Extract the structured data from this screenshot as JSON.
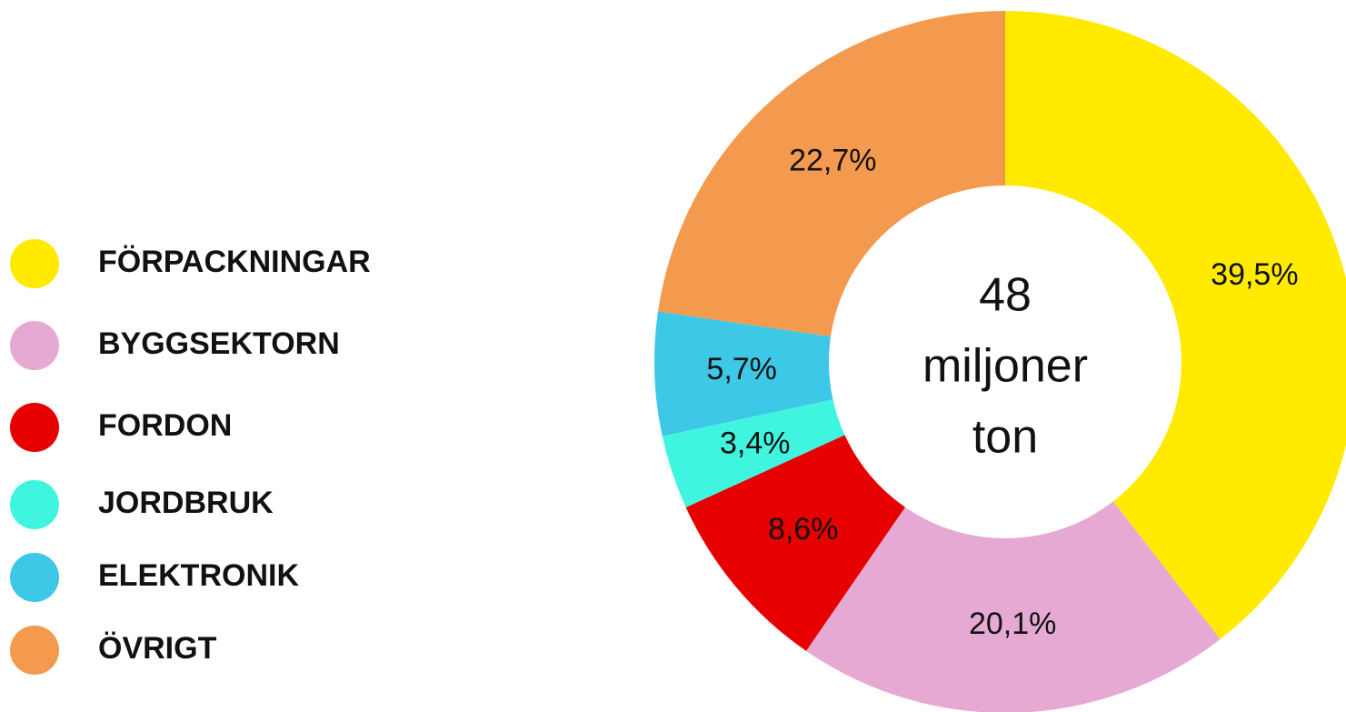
{
  "chart_data": {
    "type": "donut",
    "categories": [
      "FÖRPACKNINGAR",
      "BYGGSEKTORN",
      "FORDON",
      "JORDBRUK",
      "ELEKTRONIK",
      "ÖVRIGT"
    ],
    "values": [
      39.5,
      20.1,
      8.6,
      3.4,
      5.7,
      22.7
    ],
    "value_labels": [
      "39,5%",
      "20,1%",
      "8,6%",
      "3,4%",
      "5,7%",
      "22,7%"
    ],
    "colors": [
      "#ffea00",
      "#e6a9d4",
      "#e60000",
      "#40f5e0",
      "#3cc8e6",
      "#f39a4f"
    ],
    "center_text": [
      "48",
      "miljoner",
      "ton"
    ],
    "legend": "left"
  }
}
